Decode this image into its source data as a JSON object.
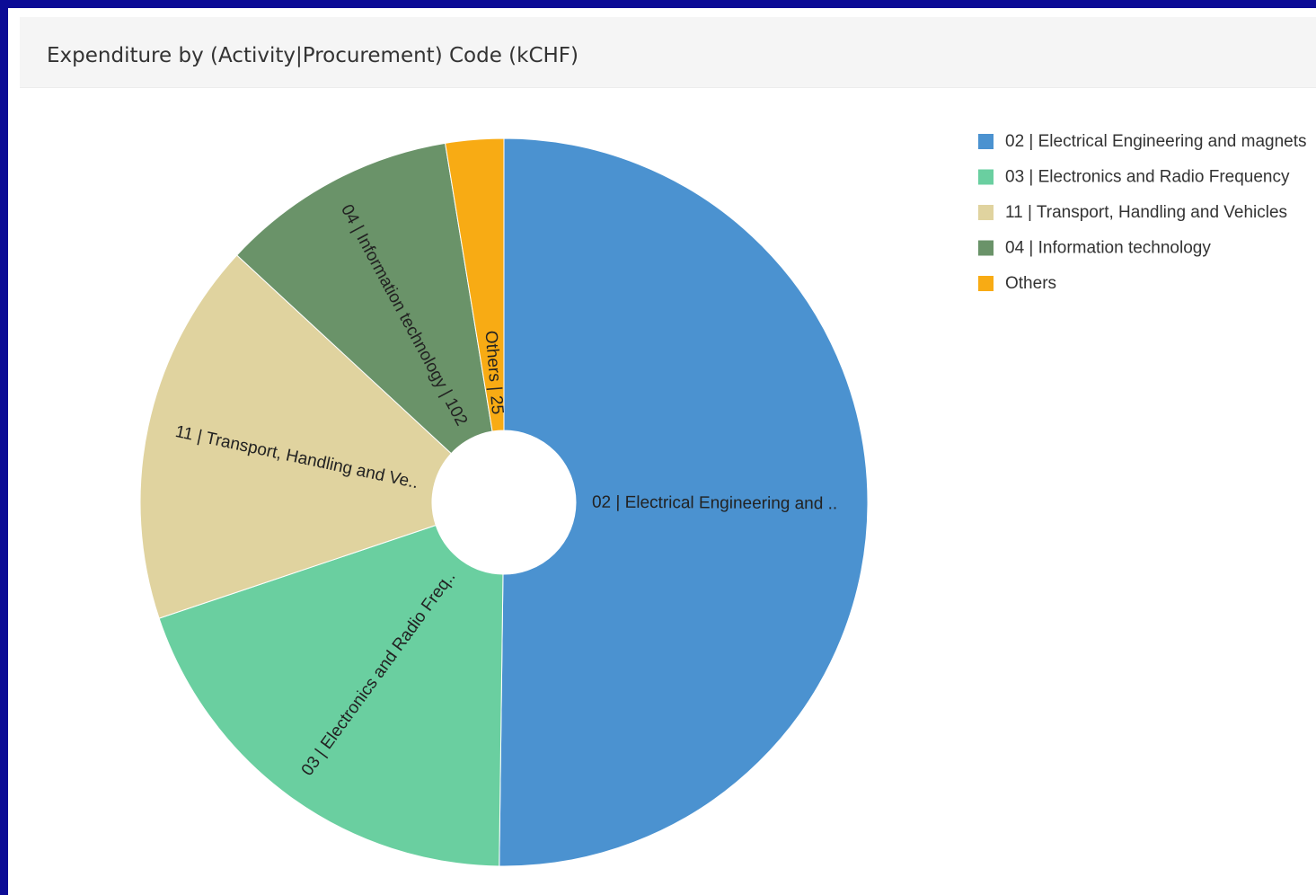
{
  "panel": {
    "title": "Expenditure by (Activity|Procurement) Code (kCHF)"
  },
  "chart_data": {
    "type": "pie",
    "donut": true,
    "legend_position": "right",
    "slices": [
      {
        "label": "02 | Electrical Engineering and magnets",
        "short_label": "02 | Electrical Engineering and ..",
        "value": 486,
        "color": "#4b92d0"
      },
      {
        "label": "03 | Electronics and Radio Frequency",
        "short_label": "03 | Electronics and Radio Freq..",
        "value": 190,
        "color": "#6acfa0"
      },
      {
        "label": "11 | Transport, Handling and Vehicles",
        "short_label": "11 | Transport, Handling and Ve..",
        "value": 165,
        "color": "#e0d39f"
      },
      {
        "label": "04 | Information technology",
        "short_label": "04 | Information technology | 102",
        "value": 102,
        "color": "#6a9369"
      },
      {
        "label": "Others",
        "short_label": "Others | 25",
        "value": 25,
        "color": "#f8ab14"
      }
    ]
  }
}
